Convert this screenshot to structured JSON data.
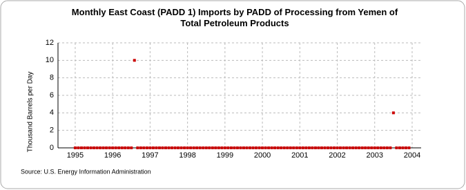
{
  "chart_data": {
    "type": "scatter",
    "title": "Monthly East Coast (PADD 1) Imports by PADD of Processing from Yemen of Total Petroleum Products",
    "y_label": "Thousand Barrels per Day",
    "source": "Source: U.S. Energy Information Administration",
    "x": [
      1995,
      1995.083,
      1995.167,
      1995.25,
      1995.333,
      1995.417,
      1995.5,
      1995.583,
      1995.667,
      1995.75,
      1995.833,
      1995.917,
      1996,
      1996.083,
      1996.167,
      1996.25,
      1996.333,
      1996.417,
      1996.5,
      1996.583,
      1996.667,
      1996.75,
      1996.833,
      1996.917,
      1997,
      1997.083,
      1997.167,
      1997.25,
      1997.333,
      1997.417,
      1997.5,
      1997.583,
      1997.667,
      1997.75,
      1997.833,
      1997.917,
      1998,
      1998.083,
      1998.167,
      1998.25,
      1998.333,
      1998.417,
      1998.5,
      1998.583,
      1998.667,
      1998.75,
      1998.833,
      1998.917,
      1999,
      1999.083,
      1999.167,
      1999.25,
      1999.333,
      1999.417,
      1999.5,
      1999.583,
      1999.667,
      1999.75,
      1999.833,
      1999.917,
      2000,
      2000.083,
      2000.167,
      2000.25,
      2000.333,
      2000.417,
      2000.5,
      2000.583,
      2000.667,
      2000.75,
      2000.833,
      2000.917,
      2001,
      2001.083,
      2001.167,
      2001.25,
      2001.333,
      2001.417,
      2001.5,
      2001.583,
      2001.667,
      2001.75,
      2001.833,
      2001.917,
      2002,
      2002.083,
      2002.167,
      2002.25,
      2002.333,
      2002.417,
      2002.5,
      2002.583,
      2002.667,
      2002.75,
      2002.833,
      2002.917,
      2003,
      2003.083,
      2003.167,
      2003.25,
      2003.333,
      2003.417,
      2003.5,
      2003.583,
      2003.667,
      2003.75,
      2003.833,
      2003.917
    ],
    "values": [
      0,
      0,
      0,
      0,
      0,
      0,
      0,
      0,
      0,
      0,
      0,
      0,
      0,
      0,
      0,
      0,
      0,
      0,
      0,
      10,
      0,
      0,
      0,
      0,
      0,
      0,
      0,
      0,
      0,
      0,
      0,
      0,
      0,
      0,
      0,
      0,
      0,
      0,
      0,
      0,
      0,
      0,
      0,
      0,
      0,
      0,
      0,
      0,
      0,
      0,
      0,
      0,
      0,
      0,
      0,
      0,
      0,
      0,
      0,
      0,
      0,
      0,
      0,
      0,
      0,
      0,
      0,
      0,
      0,
      0,
      0,
      0,
      0,
      0,
      0,
      0,
      0,
      0,
      0,
      0,
      0,
      0,
      0,
      0,
      0,
      0,
      0,
      0,
      0,
      0,
      0,
      0,
      0,
      0,
      0,
      0,
      0,
      0,
      0,
      0,
      0,
      0,
      4,
      0,
      0,
      0,
      0,
      0
    ],
    "color": "#cc0000",
    "xlim": [
      1994.54,
      2004.24
    ],
    "xticks": [
      1995,
      1996,
      1997,
      1998,
      1999,
      2000,
      2001,
      2002,
      2003,
      2004
    ],
    "ylim": [
      0,
      12
    ],
    "yticks": [
      0,
      2,
      4,
      6,
      8,
      10,
      12
    ],
    "grid": true
  }
}
